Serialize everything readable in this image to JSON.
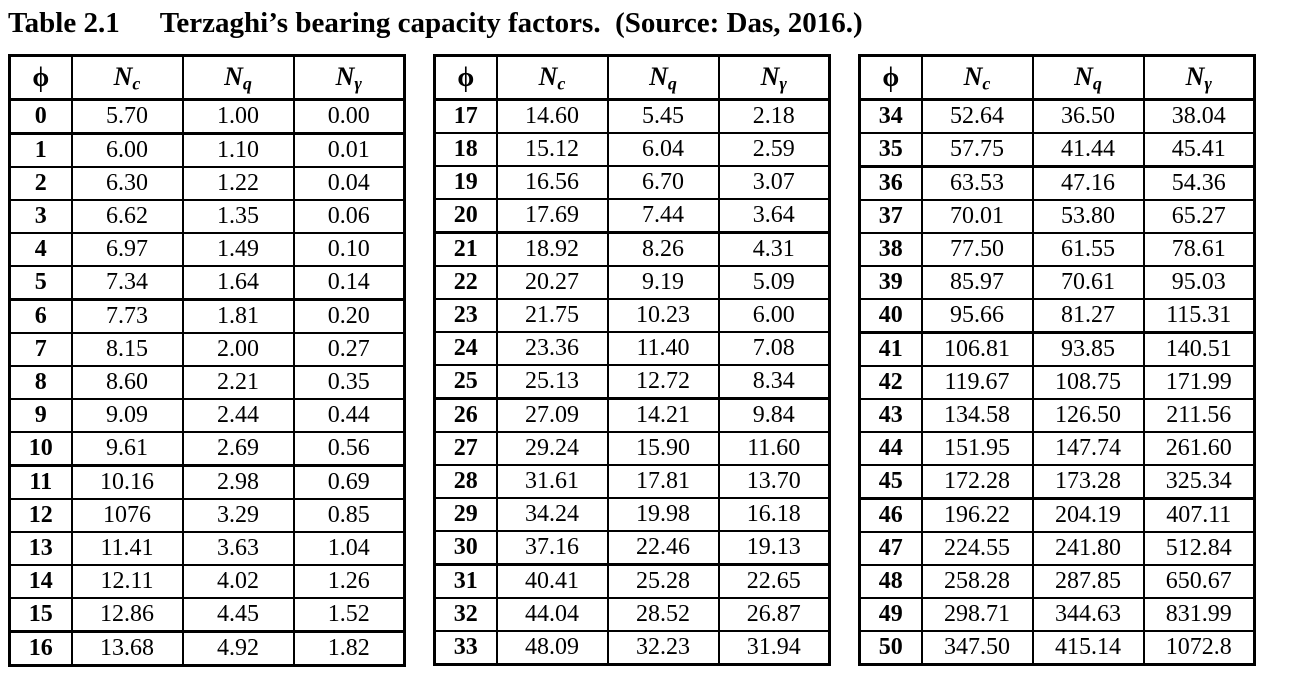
{
  "title": {
    "label": "Table 2.1",
    "caption": "Terzaghi’s bearing capacity factors.  (Source: Das, 2016.)"
  },
  "columns": [
    {
      "base": "ϕ",
      "sub": ""
    },
    {
      "base": "N",
      "sub": "c"
    },
    {
      "base": "N",
      "sub": "q"
    },
    {
      "base": "N",
      "sub": "γ"
    }
  ],
  "group_rule_after_phi_multiple_of": 5,
  "tables": [
    {
      "rows": [
        [
          "0",
          "5.70",
          "1.00",
          "0.00"
        ],
        [
          "1",
          "6.00",
          "1.10",
          "0.01"
        ],
        [
          "2",
          "6.30",
          "1.22",
          "0.04"
        ],
        [
          "3",
          "6.62",
          "1.35",
          "0.06"
        ],
        [
          "4",
          "6.97",
          "1.49",
          "0.10"
        ],
        [
          "5",
          "7.34",
          "1.64",
          "0.14"
        ],
        [
          "6",
          "7.73",
          "1.81",
          "0.20"
        ],
        [
          "7",
          "8.15",
          "2.00",
          "0.27"
        ],
        [
          "8",
          "8.60",
          "2.21",
          "0.35"
        ],
        [
          "9",
          "9.09",
          "2.44",
          "0.44"
        ],
        [
          "10",
          "9.61",
          "2.69",
          "0.56"
        ],
        [
          "11",
          "10.16",
          "2.98",
          "0.69"
        ],
        [
          "12",
          "1076",
          "3.29",
          "0.85"
        ],
        [
          "13",
          "11.41",
          "3.63",
          "1.04"
        ],
        [
          "14",
          "12.11",
          "4.02",
          "1.26"
        ],
        [
          "15",
          "12.86",
          "4.45",
          "1.52"
        ],
        [
          "16",
          "13.68",
          "4.92",
          "1.82"
        ]
      ]
    },
    {
      "rows": [
        [
          "17",
          "14.60",
          "5.45",
          "2.18"
        ],
        [
          "18",
          "15.12",
          "6.04",
          "2.59"
        ],
        [
          "19",
          "16.56",
          "6.70",
          "3.07"
        ],
        [
          "20",
          "17.69",
          "7.44",
          "3.64"
        ],
        [
          "21",
          "18.92",
          "8.26",
          "4.31"
        ],
        [
          "22",
          "20.27",
          "9.19",
          "5.09"
        ],
        [
          "23",
          "21.75",
          "10.23",
          "6.00"
        ],
        [
          "24",
          "23.36",
          "11.40",
          "7.08"
        ],
        [
          "25",
          "25.13",
          "12.72",
          "8.34"
        ],
        [
          "26",
          "27.09",
          "14.21",
          "9.84"
        ],
        [
          "27",
          "29.24",
          "15.90",
          "11.60"
        ],
        [
          "28",
          "31.61",
          "17.81",
          "13.70"
        ],
        [
          "29",
          "34.24",
          "19.98",
          "16.18"
        ],
        [
          "30",
          "37.16",
          "22.46",
          "19.13"
        ],
        [
          "31",
          "40.41",
          "25.28",
          "22.65"
        ],
        [
          "32",
          "44.04",
          "28.52",
          "26.87"
        ],
        [
          "33",
          "48.09",
          "32.23",
          "31.94"
        ]
      ]
    },
    {
      "rows": [
        [
          "34",
          "52.64",
          "36.50",
          "38.04"
        ],
        [
          "35",
          "57.75",
          "41.44",
          "45.41"
        ],
        [
          "36",
          "63.53",
          "47.16",
          "54.36"
        ],
        [
          "37",
          "70.01",
          "53.80",
          "65.27"
        ],
        [
          "38",
          "77.50",
          "61.55",
          "78.61"
        ],
        [
          "39",
          "85.97",
          "70.61",
          "95.03"
        ],
        [
          "40",
          "95.66",
          "81.27",
          "115.31"
        ],
        [
          "41",
          "106.81",
          "93.85",
          "140.51"
        ],
        [
          "42",
          "119.67",
          "108.75",
          "171.99"
        ],
        [
          "43",
          "134.58",
          "126.50",
          "211.56"
        ],
        [
          "44",
          "151.95",
          "147.74",
          "261.60"
        ],
        [
          "45",
          "172.28",
          "173.28",
          "325.34"
        ],
        [
          "46",
          "196.22",
          "204.19",
          "407.11"
        ],
        [
          "47",
          "224.55",
          "241.80",
          "512.84"
        ],
        [
          "48",
          "258.28",
          "287.85",
          "650.67"
        ],
        [
          "49",
          "298.71",
          "344.63",
          "831.99"
        ],
        [
          "50",
          "347.50",
          "415.14",
          "1072.8"
        ]
      ]
    }
  ]
}
